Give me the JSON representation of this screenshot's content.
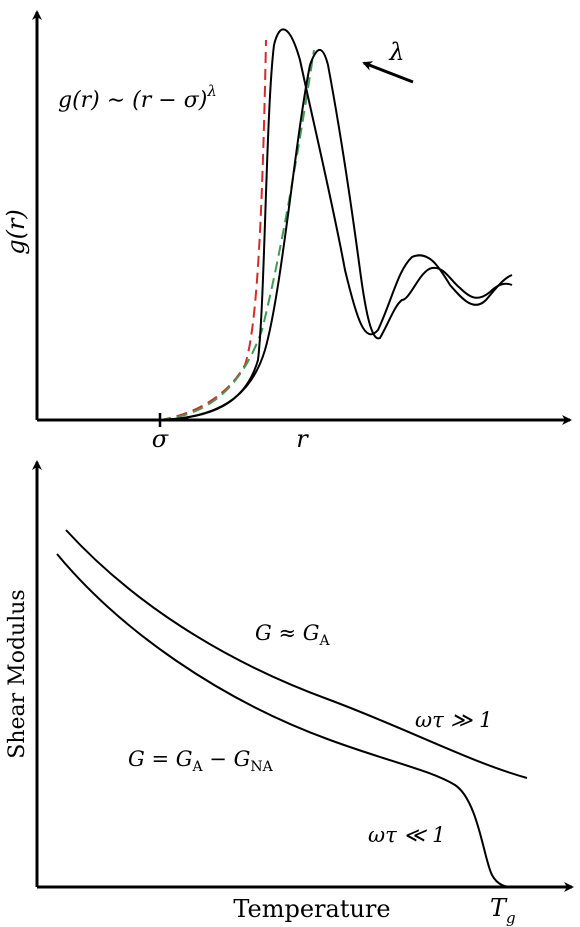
{
  "top_panel": {
    "y_axis_label": "g(r)",
    "x_tick_sigma": "σ",
    "x_label_r": "r",
    "formula": {
      "lhs": "g(r) ∼ (r − σ)",
      "exponent": "λ"
    },
    "arrow_label": "λ",
    "colors": {
      "curves": "#000000",
      "dashed_red": "#d42a2a",
      "dashed_green": "#3f9a55"
    }
  },
  "bottom_panel": {
    "y_axis_label": "Shear Modulus",
    "x_axis_label": "Temperature",
    "x_tick_tg": {
      "base": "T",
      "sub": "g"
    },
    "label_upper_region": {
      "text": "G ≈ G",
      "sub": "A"
    },
    "label_lower_region": {
      "text": "G = G",
      "sub1": "A",
      "mid": " − G",
      "sub2": "NA"
    },
    "label_high_freq": "ωτ ≫ 1",
    "label_low_freq": "ωτ ≪ 1"
  }
}
